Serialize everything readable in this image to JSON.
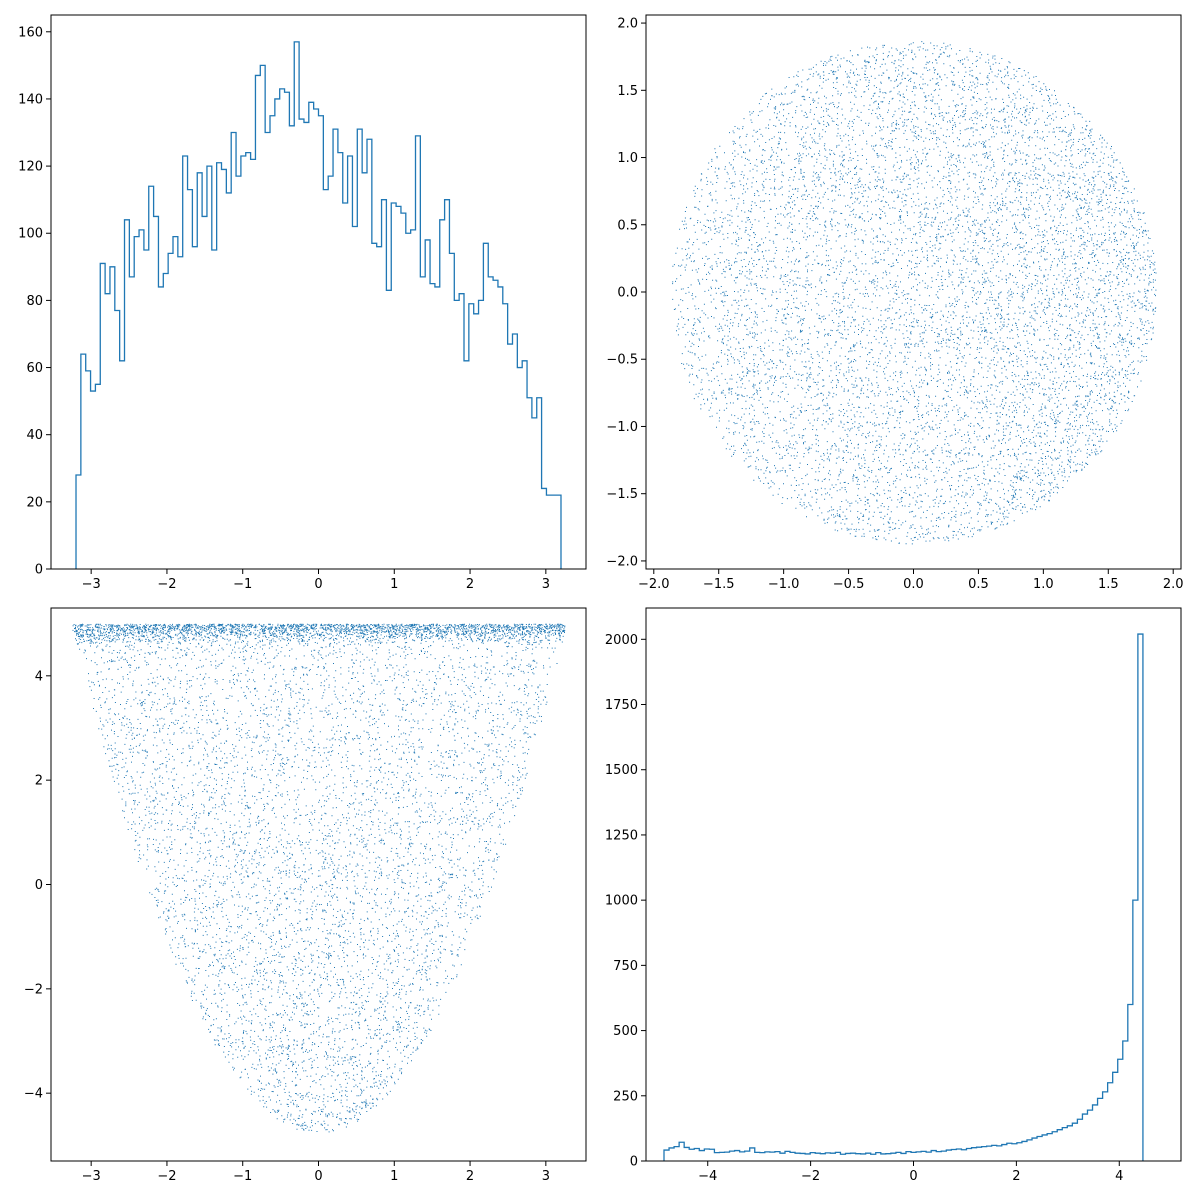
{
  "figure": {
    "accent_color": "#1f77b4",
    "background": "#ffffff"
  },
  "chart_data": [
    {
      "id": "panel-top-left",
      "type": "histogram",
      "histtype": "step",
      "title": "",
      "xlabel": "",
      "ylabel": "",
      "xlim": [
        -3.53,
        3.53
      ],
      "ylim": [
        0,
        165
      ],
      "xticks": [
        -3,
        -2,
        -1,
        0,
        1,
        2,
        3
      ],
      "yticks": [
        0,
        20,
        40,
        60,
        80,
        100,
        120,
        140,
        160
      ],
      "bin_start": -3.2,
      "bin_width": 0.064,
      "values": [
        28,
        64,
        59,
        53,
        55,
        91,
        82,
        90,
        77,
        62,
        104,
        87,
        99,
        101,
        95,
        114,
        105,
        84,
        88,
        94,
        99,
        93,
        123,
        113,
        96,
        118,
        105,
        120,
        95,
        121,
        119,
        112,
        130,
        117,
        123,
        124,
        122,
        147,
        150,
        130,
        135,
        140,
        143,
        142,
        132,
        157,
        134,
        133,
        139,
        137,
        135,
        113,
        117,
        131,
        124,
        109,
        123,
        102,
        131,
        118,
        128,
        97,
        96,
        110,
        83,
        109,
        108,
        106,
        100,
        101,
        129,
        87,
        98,
        85,
        84,
        104,
        110,
        94,
        80,
        82,
        62,
        79,
        76,
        80,
        97,
        87,
        86,
        84,
        79,
        67,
        70,
        60,
        62,
        51,
        45,
        51,
        24,
        22,
        22,
        22
      ]
    },
    {
      "id": "panel-top-right",
      "type": "scatter",
      "title": "",
      "xlabel": "",
      "ylabel": "",
      "xlim": [
        -2.06,
        2.06
      ],
      "ylim": [
        -2.06,
        2.06
      ],
      "xticks": [
        -2.0,
        -1.5,
        -1.0,
        -0.5,
        0.0,
        0.5,
        1.0,
        1.5,
        2.0
      ],
      "yticks": [
        -2.0,
        -1.5,
        -1.0,
        -0.5,
        0.0,
        0.5,
        1.0,
        1.5,
        2.0
      ],
      "xtick_labels": [
        "−2.0",
        "−1.5",
        "−1.0",
        "−0.5",
        "0.0",
        "0.5",
        "1.0",
        "1.5",
        "2.0"
      ],
      "ytick_labels": [
        "−2.0",
        "−1.5",
        "−1.0",
        "−0.5",
        "0.0",
        "0.5",
        "1.0",
        "1.5",
        "2.0"
      ],
      "shape": "disk",
      "center": [
        0,
        0
      ],
      "radius": 1.87,
      "n_points": 9000,
      "density": "denser toward the right edge"
    },
    {
      "id": "panel-bottom-left",
      "type": "scatter",
      "title": "",
      "xlabel": "",
      "ylabel": "",
      "xlim": [
        -3.53,
        3.53
      ],
      "ylim": [
        -5.3,
        5.3
      ],
      "xticks": [
        -3,
        -2,
        -1,
        0,
        1,
        2,
        3
      ],
      "yticks": [
        -4,
        -2,
        0,
        2,
        4
      ],
      "shape": "funnel (parabolic band)",
      "x_range": [
        -3.25,
        3.25
      ],
      "y_range": [
        -4.75,
        5.0
      ],
      "n_points": 9000,
      "density": "very dense along the top edge near y = 5"
    },
    {
      "id": "panel-bottom-right",
      "type": "histogram",
      "histtype": "step",
      "title": "",
      "xlabel": "",
      "ylabel": "",
      "xlim": [
        -5.2,
        5.2
      ],
      "ylim": [
        0,
        2120
      ],
      "xticks": [
        -4,
        -2,
        0,
        2,
        4
      ],
      "yticks": [
        0,
        250,
        500,
        750,
        1000,
        1250,
        1500,
        1750,
        2000
      ],
      "bin_start": -4.85,
      "bin_width": 0.098,
      "values": [
        42,
        50,
        55,
        72,
        52,
        45,
        48,
        40,
        46,
        45,
        32,
        33,
        34,
        38,
        40,
        35,
        38,
        50,
        33,
        32,
        35,
        34,
        36,
        30,
        37,
        33,
        30,
        29,
        27,
        32,
        30,
        28,
        31,
        30,
        33,
        26,
        29,
        30,
        28,
        27,
        30,
        26,
        32,
        27,
        28,
        30,
        33,
        29,
        36,
        33,
        35,
        37,
        34,
        40,
        36,
        38,
        42,
        44,
        46,
        43,
        48,
        51,
        53,
        55,
        57,
        60,
        58,
        63,
        68,
        66,
        70,
        75,
        81,
        88,
        94,
        100,
        105,
        112,
        120,
        128,
        135,
        145,
        160,
        180,
        195,
        215,
        240,
        265,
        300,
        340,
        390,
        460,
        600,
        1000,
        2020
      ]
    }
  ]
}
